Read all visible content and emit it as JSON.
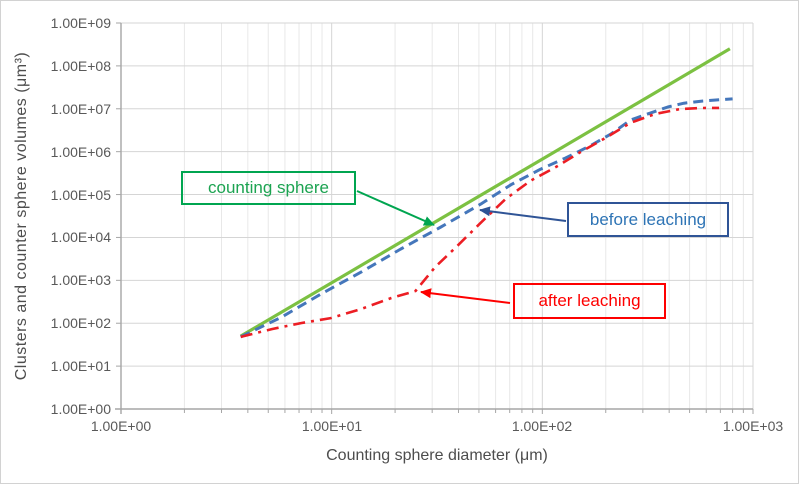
{
  "chart_data": {
    "type": "line",
    "title": "",
    "xlabel": "Counting sphere diameter (μm)",
    "ylabel": "Clusters and counter sphere volumes (μm³)",
    "x_scale": "log",
    "y_scale": "log",
    "xlim": [
      1,
      1000
    ],
    "ylim": [
      1,
      1000000000
    ],
    "x_tick_labels": [
      "1.00E+00",
      "1.00E+01",
      "1.00E+02",
      "1.00E+03"
    ],
    "y_tick_labels": [
      "1.00E+09",
      "1.00E+08",
      "1.00E+07",
      "1.00E+06",
      "1.00E+05",
      "1.00E+04",
      "1.00E+03",
      "1.00E+02",
      "1.00E+01",
      "1.00E+00"
    ],
    "grid": {
      "x_major": true,
      "x_minor": true,
      "y_major": true,
      "y_minor": false
    },
    "legend_position": "annotated-callouts",
    "series": [
      {
        "name": "counting sphere",
        "style": "solid",
        "color": "#7cc142",
        "line_width": 3.2,
        "points": [
          [
            3.7,
            50
          ],
          [
            10,
            880
          ],
          [
            100,
            670000
          ],
          [
            777,
            250000000
          ]
        ]
      },
      {
        "name": "before leaching",
        "style": "dashed",
        "color": "#4577bb",
        "line_width": 3,
        "points": [
          [
            3.7,
            48
          ],
          [
            5.8,
            140
          ],
          [
            8.9,
            480
          ],
          [
            13.8,
            1560
          ],
          [
            21.3,
            5370
          ],
          [
            33,
            17500
          ],
          [
            51,
            60000
          ],
          [
            71,
            170000
          ],
          [
            98,
            390000
          ],
          [
            129,
            710000
          ],
          [
            170,
            1400000
          ],
          [
            212,
            2600000
          ],
          [
            263,
            5500000
          ],
          [
            327,
            8000000
          ],
          [
            394,
            11000000
          ],
          [
            470,
            13500000
          ],
          [
            566,
            15000000
          ],
          [
            667,
            16000000
          ],
          [
            800,
            17000000
          ]
        ]
      },
      {
        "name": "after leaching",
        "style": "dash-dot",
        "color": "#ec1e24",
        "line_width": 2.6,
        "points": [
          [
            3.7,
            48
          ],
          [
            5.2,
            73
          ],
          [
            7.2,
            101
          ],
          [
            9.9,
            132
          ],
          [
            13.8,
            215
          ],
          [
            19.2,
            387
          ],
          [
            25,
            564
          ],
          [
            31,
            2050
          ],
          [
            39,
            5980
          ],
          [
            51,
            22000
          ],
          [
            67,
            79000
          ],
          [
            88,
            210000
          ],
          [
            116,
            440000
          ],
          [
            152,
            980000
          ],
          [
            200,
            2100000
          ],
          [
            262,
            4700000
          ],
          [
            344,
            7600000
          ],
          [
            452,
            9900000
          ],
          [
            566,
            10400000
          ],
          [
            690,
            10500000
          ]
        ]
      }
    ],
    "annotations": [
      {
        "label": "counting sphere",
        "text_color": "#1ca351",
        "border_color": "#00a550",
        "arrow_color": "#00a550"
      },
      {
        "label": "before leaching",
        "text_color": "#2e74b5",
        "border_color": "#2f5496",
        "arrow_color": "#2f5496"
      },
      {
        "label": "after leaching",
        "text_color": "#fe0000",
        "border_color": "#fe0000",
        "arrow_color": "#fe0000"
      }
    ]
  }
}
